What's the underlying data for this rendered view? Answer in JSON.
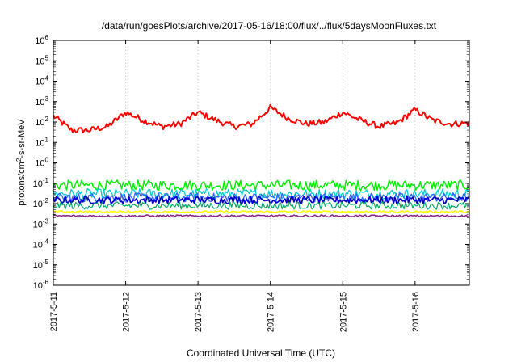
{
  "chart_data": {
    "type": "line",
    "title": "/data/run/goesPlots/archive/2017-05-16/18:00/flux/../flux/5daysMoonFluxes.txt",
    "xlabel": "Coordinated Universal Time (UTC)",
    "ylabel": {
      "base": "protons/cm",
      "superscript": "2",
      "rest": "-s-sr-MeV"
    },
    "yscale": "log",
    "ylim": [
      1e-06,
      1000000.0
    ],
    "y_ticks": [
      {
        "base": "10",
        "exp": "-6",
        "value": 1e-06
      },
      {
        "base": "10",
        "exp": "-5",
        "value": 1e-05
      },
      {
        "base": "10",
        "exp": "-4",
        "value": 0.0001
      },
      {
        "base": "10",
        "exp": "-3",
        "value": 0.001
      },
      {
        "base": "10",
        "exp": "-2",
        "value": 0.01
      },
      {
        "base": "10",
        "exp": "-1",
        "value": 0.1
      },
      {
        "base": "10",
        "exp": "0",
        "value": 1
      },
      {
        "base": "10",
        "exp": "1",
        "value": 10
      },
      {
        "base": "10",
        "exp": "2",
        "value": 100
      },
      {
        "base": "10",
        "exp": "3",
        "value": 1000
      },
      {
        "base": "10",
        "exp": "4",
        "value": 10000
      },
      {
        "base": "10",
        "exp": "5",
        "value": 100000
      },
      {
        "base": "10",
        "exp": "6",
        "value": 1000000
      }
    ],
    "xlim": [
      "2017-05-11 00:00",
      "2017-05-16 18:00"
    ],
    "x_ticks": [
      "2017-5-11",
      "2017-5-12",
      "2017-5-13",
      "2017-5-14",
      "2017-5-15",
      "2017-5-16"
    ],
    "x_tick_dates": [
      "2017-05-11",
      "2017-05-12",
      "2017-05-13",
      "2017-05-14",
      "2017-05-15",
      "2017-05-16"
    ],
    "grid": {
      "x": true,
      "y": false,
      "style": "dotted"
    },
    "series": [
      {
        "color": "#ff0000",
        "linewidth": 2,
        "approx_level": 100,
        "spread": 0.15,
        "values_at": [
          [
            "2017-05-11 00:00",
            200
          ],
          [
            "2017-05-11 06:00",
            40
          ],
          [
            "2017-05-11 12:00",
            40
          ],
          [
            "2017-05-11 18:00",
            60
          ],
          [
            "2017-05-12 00:00",
            300
          ],
          [
            "2017-05-12 06:00",
            120
          ],
          [
            "2017-05-12 12:00",
            60
          ],
          [
            "2017-05-12 18:00",
            80
          ],
          [
            "2017-05-13 00:00",
            300
          ],
          [
            "2017-05-13 06:00",
            120
          ],
          [
            "2017-05-13 12:00",
            60
          ],
          [
            "2017-05-13 18:00",
            80
          ],
          [
            "2017-05-14 00:00",
            500
          ],
          [
            "2017-05-14 06:00",
            150
          ],
          [
            "2017-05-14 12:00",
            80
          ],
          [
            "2017-05-14 18:00",
            100
          ],
          [
            "2017-05-15 00:00",
            300
          ],
          [
            "2017-05-15 06:00",
            120
          ],
          [
            "2017-05-15 12:00",
            60
          ],
          [
            "2017-05-15 18:00",
            90
          ],
          [
            "2017-05-16 00:00",
            400
          ],
          [
            "2017-05-16 06:00",
            120
          ],
          [
            "2017-05-16 12:00",
            80
          ],
          [
            "2017-05-16 18:00",
            90
          ]
        ]
      },
      {
        "color": "#00ee00",
        "linewidth": 1.5,
        "approx_level": 0.08,
        "spread": 0.25
      },
      {
        "color": "#00cccc",
        "linewidth": 1.3,
        "approx_level": 0.03,
        "spread": 0.25
      },
      {
        "color": "#3060ff",
        "linewidth": 1.3,
        "approx_level": 0.02,
        "spread": 0.22
      },
      {
        "color": "#0000cc",
        "linewidth": 1.8,
        "approx_level": 0.015,
        "spread": 0.18
      },
      {
        "color": "#00aa66",
        "linewidth": 1.2,
        "approx_level": 0.008,
        "spread": 0.18
      },
      {
        "color": "#ffff00",
        "linewidth": 1.5,
        "approx_level": 0.004,
        "spread": 0.05
      },
      {
        "color": "#882288",
        "linewidth": 1.5,
        "approx_level": 0.0025,
        "spread": 0.05
      }
    ]
  }
}
